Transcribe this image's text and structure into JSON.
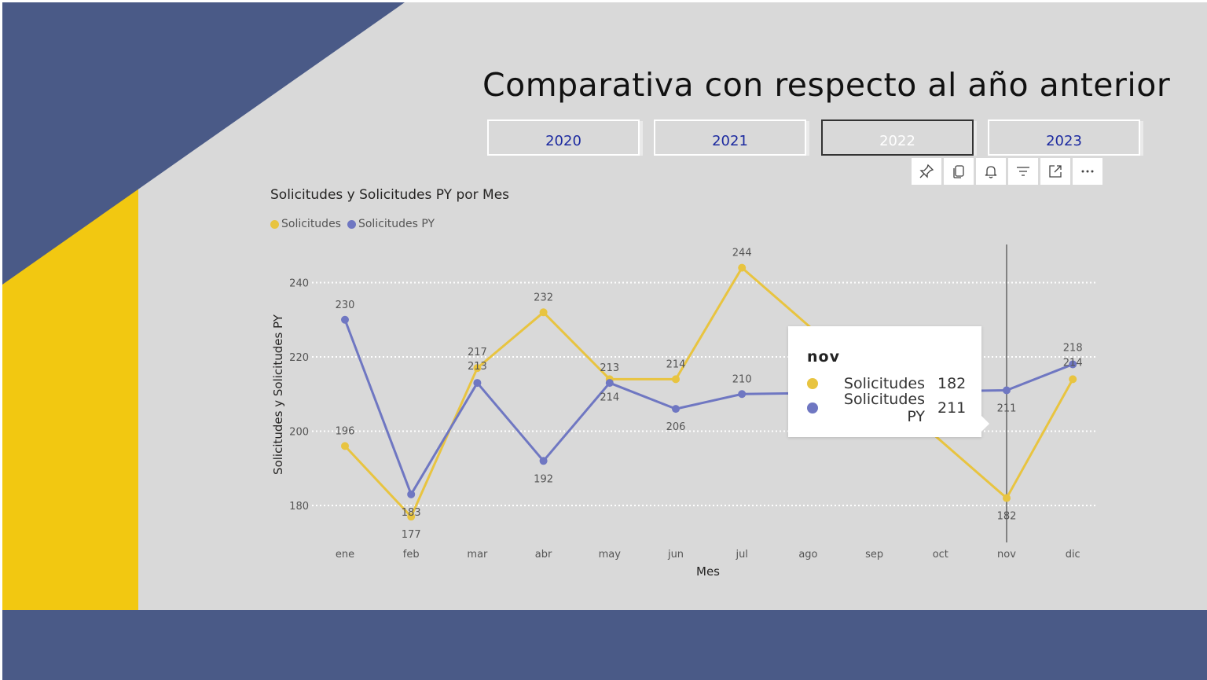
{
  "page": {
    "title": "Comparativa con respecto al año anterior",
    "colors": {
      "navy": "#4a5a87",
      "yellow": "#f2c811",
      "background": "#d9d9d9"
    }
  },
  "year_slicer": {
    "buttons": [
      {
        "label": "2020",
        "selected": false
      },
      {
        "label": "2021",
        "selected": false
      },
      {
        "label": "2022",
        "selected": true
      },
      {
        "label": "2023",
        "selected": false
      }
    ]
  },
  "visual_toolbar": {
    "icons": [
      "pin-icon",
      "copy-icon",
      "bell-icon",
      "filter-icon",
      "focus-mode-icon",
      "more-options-icon"
    ]
  },
  "chart_data": {
    "type": "line",
    "title": "Solicitudes y Solicitudes PY por Mes",
    "xlabel": "Mes",
    "ylabel": "Solicitudes y Solicitudes PY",
    "categories": [
      "ene",
      "feb",
      "mar",
      "abr",
      "may",
      "jun",
      "jul",
      "ago",
      "sep",
      "oct",
      "nov",
      "dic"
    ],
    "series": [
      {
        "name": "Solicitudes",
        "color": "#e8c440",
        "values": [
          196,
          177,
          217,
          232,
          214,
          214,
          244,
          null,
          null,
          null,
          182,
          214
        ],
        "labels": [
          "196",
          "177",
          "217",
          "232",
          "214",
          "214",
          "244",
          "",
          "",
          "",
          "182",
          "214"
        ]
      },
      {
        "name": "Solicitudes PY",
        "color": "#6f77c2",
        "values": [
          230,
          183,
          213,
          192,
          213,
          206,
          210,
          null,
          null,
          null,
          211,
          218
        ],
        "labels": [
          "230",
          "183",
          "213",
          "192",
          "213",
          "206",
          "210",
          "",
          "",
          "",
          "211",
          "218"
        ]
      }
    ],
    "yticks": [
      180,
      200,
      220,
      240
    ],
    "ylim": [
      170,
      250
    ],
    "grid": true,
    "legend_position": "top-left",
    "hover_category": "nov"
  },
  "tooltip": {
    "heading": "nov",
    "rows": [
      {
        "label": "Solicitudes",
        "value": "182",
        "color": "#e8c440"
      },
      {
        "label": "Solicitudes PY",
        "value": "211",
        "color": "#6f77c2"
      }
    ]
  }
}
